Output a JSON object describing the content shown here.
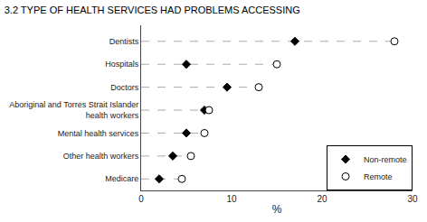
{
  "chart_data": {
    "type": "dot",
    "title": "3.2 TYPE OF HEALTH SERVICES HAD PROBLEMS ACCESSING",
    "categories": [
      "Dentists",
      "Hospitals",
      "Doctors",
      "Aboriginal and Torres Strait Islander\nhealth workers",
      "Mental health services",
      "Other health workers",
      "Medicare"
    ],
    "series": [
      {
        "name": "Non-remote",
        "color": "#000000",
        "marker": "diamond",
        "values": [
          17.0,
          5.0,
          9.5,
          7.0,
          5.0,
          3.5,
          2.0
        ]
      },
      {
        "name": "Remote",
        "color": "#ffffff",
        "marker": "circle",
        "values": [
          28.0,
          15.0,
          13.0,
          7.5,
          7.0,
          5.5,
          4.5
        ]
      }
    ],
    "color": "#aaaaaa",
    "line_style": "dashed",
    "xlim": [
      0,
      30
    ],
    "xticks": [
      0,
      10,
      20,
      30
    ],
    "xlabel": "%",
    "grid": false,
    "legend": "lower right"
  }
}
